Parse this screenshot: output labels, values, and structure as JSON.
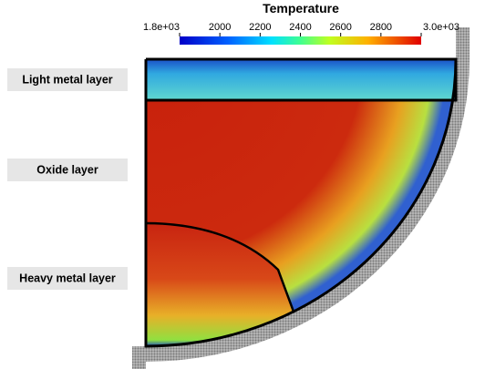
{
  "colorbar": {
    "title": "Temperature",
    "range": [
      1800,
      3000
    ],
    "ticks": [
      {
        "value": 1800,
        "label": "1.8e+03"
      },
      2000,
      2200,
      2400,
      2600,
      2800,
      {
        "value": 3000,
        "label": "3.0e+03"
      }
    ]
  },
  "labels": {
    "light_metal": "Light metal layer",
    "oxide": "Oxide layer",
    "heavy_metal": "Heavy metal layer"
  }
}
